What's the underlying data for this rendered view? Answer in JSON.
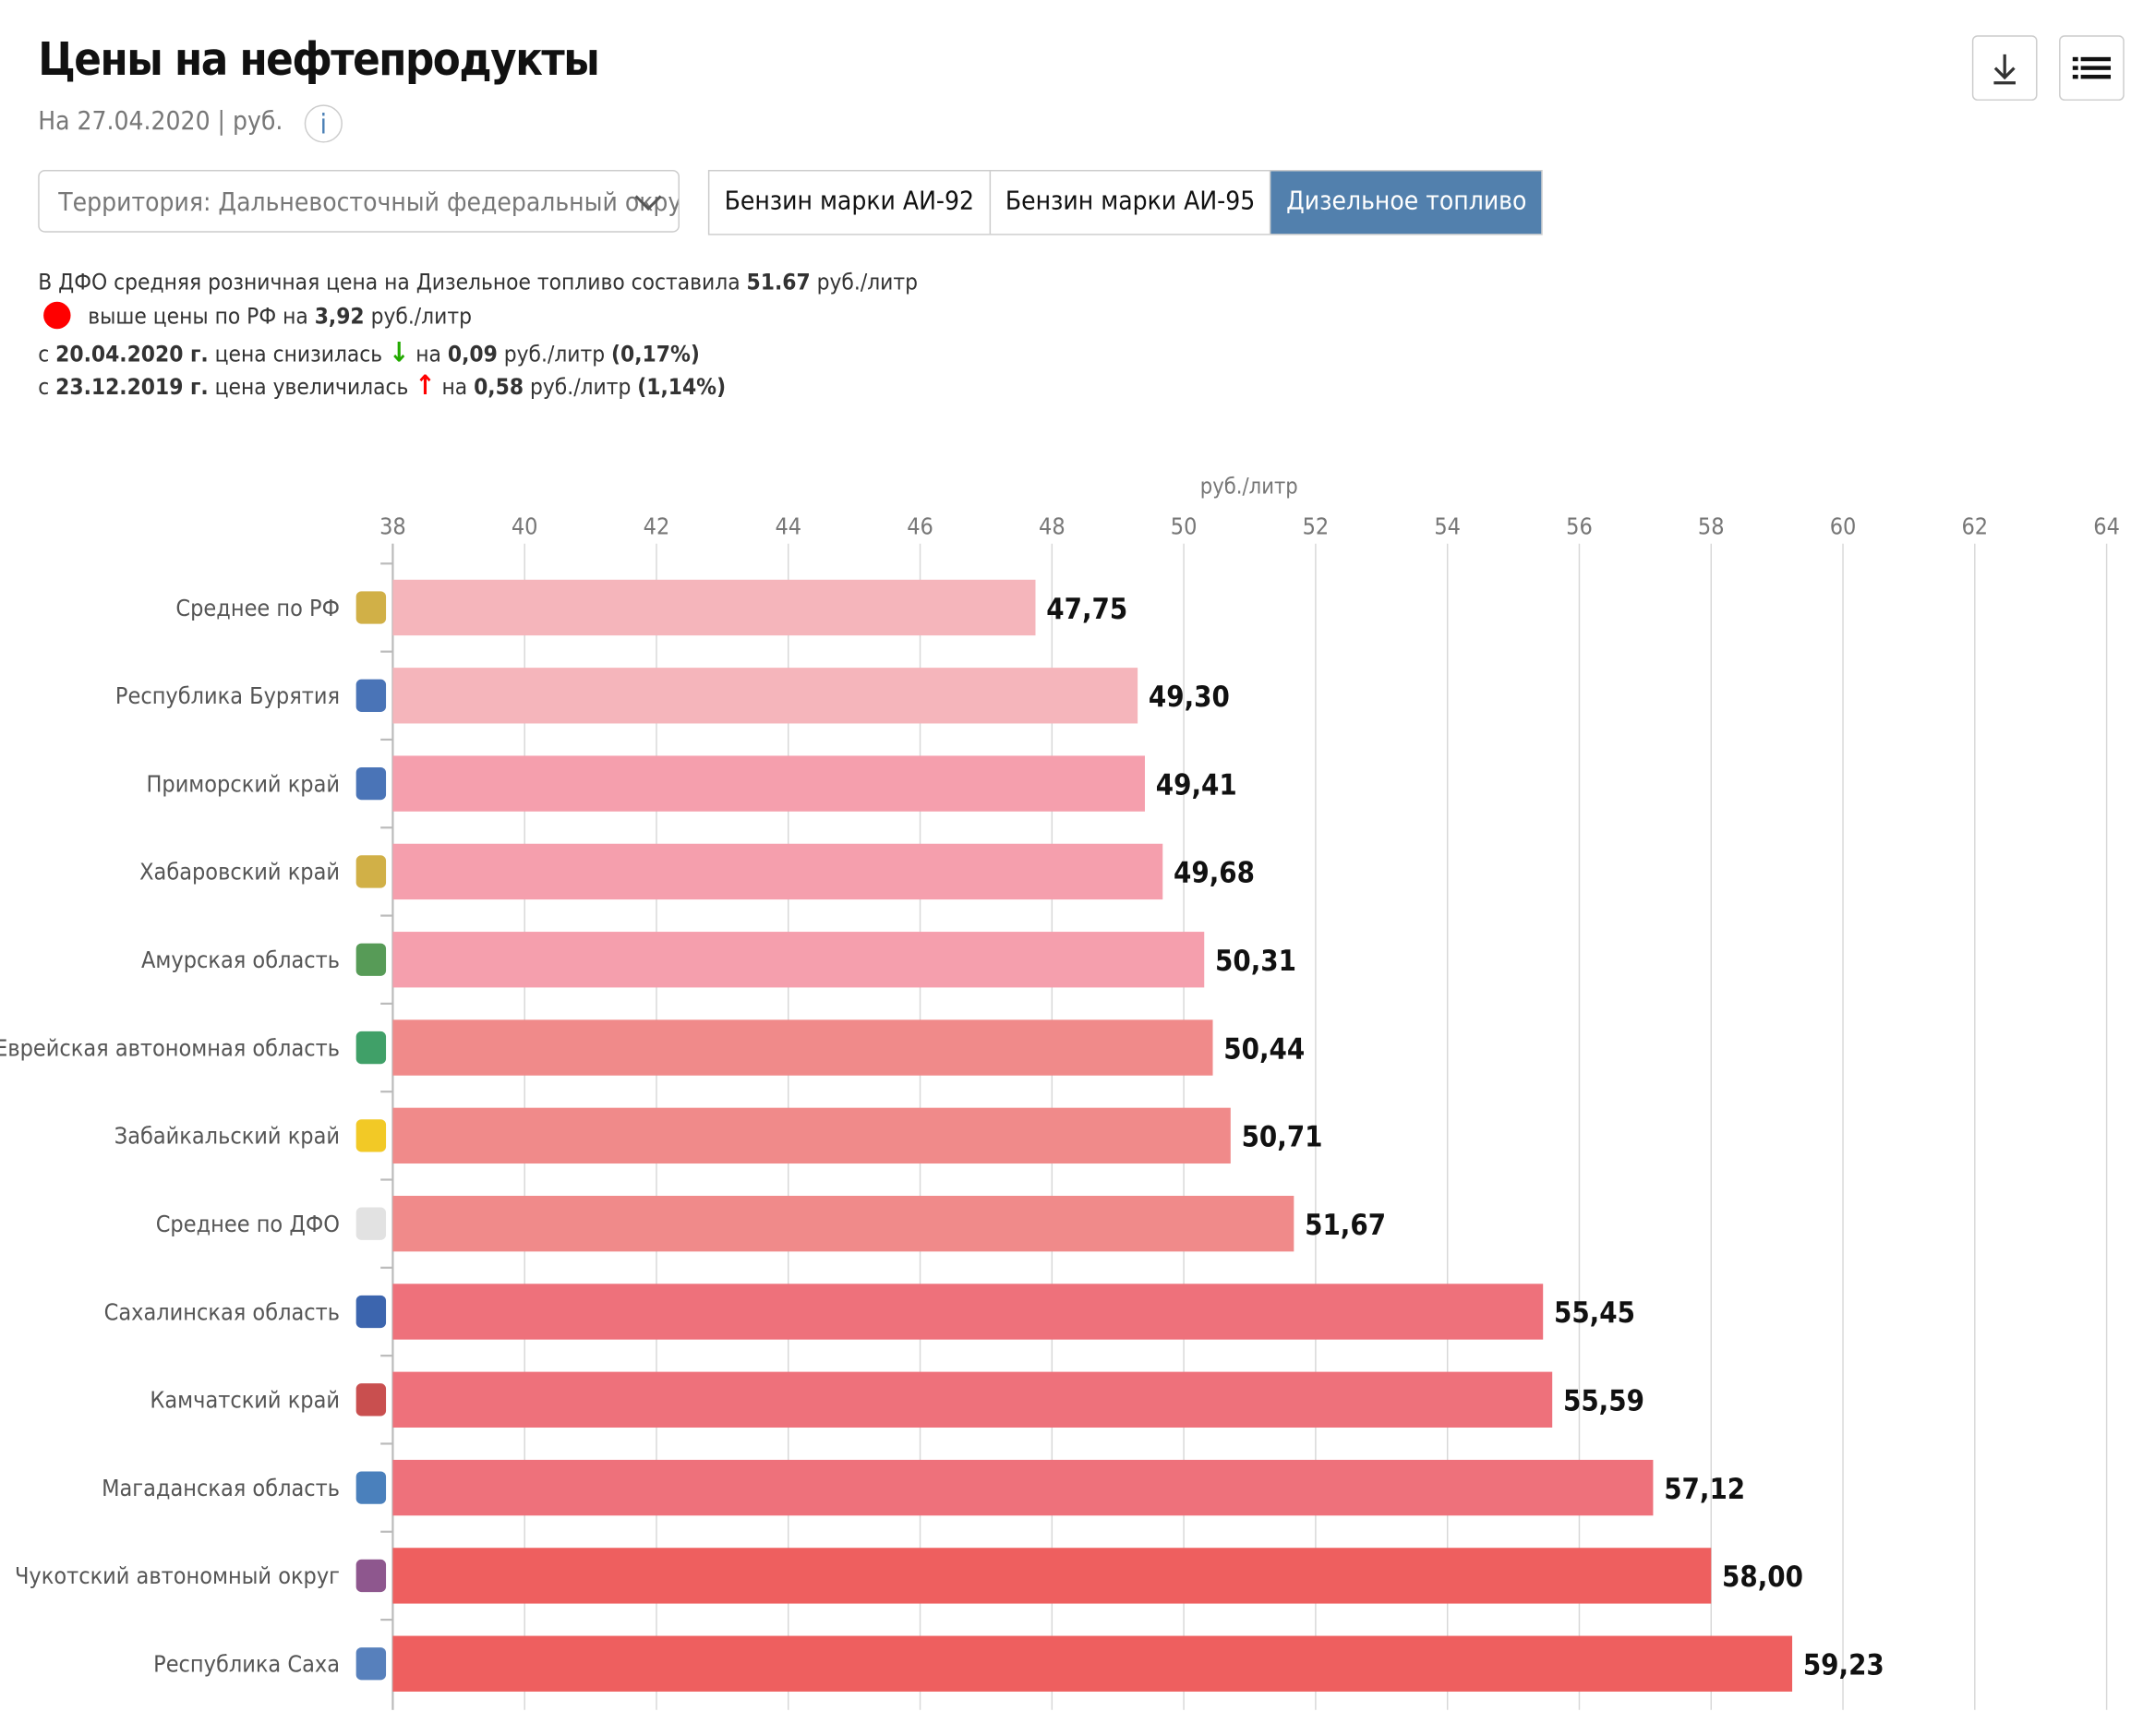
{
  "header": {
    "title": "Цены на нефтепродукты",
    "subtitle": "На 27.04.2020 | руб.",
    "info_icon": "info-icon",
    "download_icon": "download-icon",
    "menu_icon": "list-menu-icon"
  },
  "filter": {
    "territory_label": "Территория: Дальневосточный федеральный округ",
    "tabs": [
      {
        "label": "Бензин марки АИ-92",
        "active": false
      },
      {
        "label": "Бензин марки АИ-95",
        "active": false
      },
      {
        "label": "Дизельное топливо",
        "active": true
      }
    ],
    "active_color": "#5280ad"
  },
  "summary": {
    "line1": {
      "text": "В ДФО средняя розничная цена на Дизельное топливо составила ",
      "value": "51.67",
      "unit": " руб./литр"
    },
    "line2": {
      "text": " выше цены по РФ на ",
      "value": "3,92",
      "unit": " руб./литр",
      "indicator_color": "#ff0000"
    },
    "line3": {
      "pre": "с ",
      "date": "20.04.2020 г.",
      "text": " цена снизилась ",
      "arrow": "↓",
      "mid": " на ",
      "value": "0,09",
      "unit": " руб./литр ",
      "pct": "(0,17%)",
      "arrow_color": "#22aa00"
    },
    "line4": {
      "pre": "с ",
      "date": "23.12.2019 г.",
      "text": " цена увеличилась ",
      "arrow": "↑",
      "mid": " на ",
      "value": "0,58",
      "unit": " руб./литр ",
      "pct": "(1,14%)",
      "arrow_color": "#ff0000"
    }
  },
  "chart_data": {
    "type": "bar",
    "orientation": "horizontal",
    "xlabel": "руб./литр",
    "xlim": [
      38,
      64
    ],
    "ticks": [
      "38",
      "40",
      "42",
      "44",
      "46",
      "48",
      "50",
      "52",
      "54",
      "56",
      "58",
      "60",
      "62",
      "64"
    ],
    "grid": true,
    "categories": [
      "Среднее по РФ",
      "Республика Бурятия",
      "Приморский край",
      "Хабаровский край",
      "Амурская область",
      "Еврейская автономная область",
      "Забайкальский край",
      "Среднее по ДФО",
      "Сахалинская область",
      "Камчатский край",
      "Магаданская область",
      "Чукотский автономный округ",
      "Республика Саха"
    ],
    "values": [
      47.75,
      49.3,
      49.41,
      49.68,
      50.31,
      50.44,
      50.71,
      51.67,
      55.45,
      55.59,
      57.12,
      58.0,
      59.23
    ],
    "labels": [
      "47,75",
      "49,30",
      "49,41",
      "49,68",
      "50,31",
      "50,44",
      "50,71",
      "51,67",
      "55,45",
      "55,59",
      "57,12",
      "58,00",
      "59,23"
    ],
    "colors": [
      "#f5b5bb",
      "#f5b5bb",
      "#f59fad",
      "#f59fad",
      "#f59fad",
      "#f08a8a",
      "#f08a8a",
      "#f08a8a",
      "#ee717b",
      "#ee717b",
      "#ee717b",
      "#ee5f5f",
      "#ee5f5f"
    ],
    "emblem_icons": [
      "russia-coat-of-arms-icon",
      "buryatia-emblem-icon",
      "primorsky-emblem-icon",
      "khabarovsk-emblem-icon",
      "amur-emblem-icon",
      "jewish-ao-emblem-icon",
      "zabaykalsky-emblem-icon",
      "far-east-map-icon",
      "sakhalin-emblem-icon",
      "kamchatka-emblem-icon",
      "magadan-emblem-icon",
      "chukotka-emblem-icon",
      "sakha-emblem-icon"
    ],
    "emblem_colors": [
      "#c9a227",
      "#2a5caa",
      "#2a5caa",
      "#c9a227",
      "#3a8a3a",
      "#1e8f4e",
      "#f0c000",
      "#dddddd",
      "#1a4aa0",
      "#c03030",
      "#2a6ab0",
      "#7a3a7a",
      "#3a6ab0"
    ]
  }
}
